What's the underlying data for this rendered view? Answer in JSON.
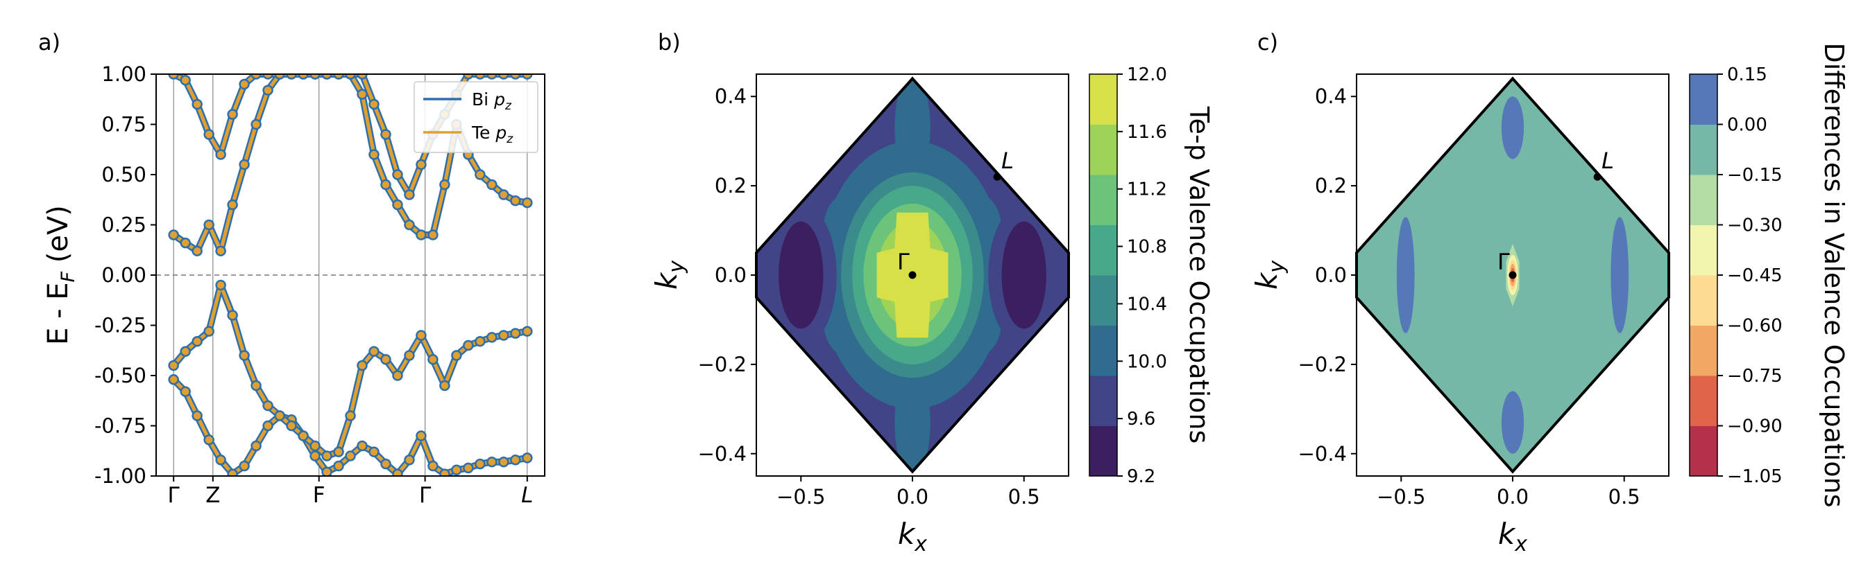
{
  "chart_data": [
    {
      "type": "line",
      "panel_label": "a)",
      "ylabel_main": "E - E",
      "ylabel_sub": "F",
      "ylabel_tail": " (eV)",
      "ylim": [
        -1.0,
        1.0
      ],
      "yticks": [
        "1.00",
        "0.75",
        "0.50",
        "0.25",
        "0.00",
        "-0.25",
        "-0.50",
        "-0.75",
        "-1.00"
      ],
      "ytick_values": [
        1.0,
        0.75,
        0.5,
        0.25,
        0.0,
        -0.25,
        -0.5,
        -0.75,
        -1.0
      ],
      "xticks": [
        "Γ",
        "Z",
        "F",
        "Γ",
        "L"
      ],
      "xtick_positions": [
        0,
        0.1,
        0.37,
        0.64,
        0.9
      ],
      "fermi_level": 0.0,
      "legend": {
        "placement": "top-right",
        "entries": [
          {
            "name": "Bi",
            "sub": "z",
            "color": "#2d6fae"
          },
          {
            "name": "Te",
            "sub": "z",
            "color": "#e0a030"
          }
        ]
      },
      "series": [
        {
          "x": [
            0,
            0.03,
            0.06,
            0.09,
            0.12,
            0.15,
            0.18,
            0.21,
            0.24,
            0.27,
            0.3,
            0.33,
            0.36,
            0.39,
            0.42,
            0.45,
            0.48,
            0.51,
            0.54,
            0.57,
            0.6,
            0.63,
            0.66,
            0.69,
            0.72,
            0.75,
            0.78,
            0.81,
            0.84,
            0.87,
            0.9
          ],
          "y": [
            -0.52,
            -0.58,
            -0.7,
            -0.82,
            -0.92,
            -0.99,
            -0.95,
            -0.85,
            -0.75,
            -0.7,
            -0.72,
            -0.8,
            -0.9,
            -0.98,
            -0.95,
            -0.9,
            -0.85,
            -0.88,
            -0.94,
            -0.99,
            -0.92,
            -0.8,
            -0.95,
            -0.99,
            -0.97,
            -0.96,
            -0.94,
            -0.93,
            -0.93,
            -0.92,
            -0.91
          ]
        },
        {
          "x": [
            0,
            0.03,
            0.06,
            0.09,
            0.12,
            0.15,
            0.18,
            0.21,
            0.24,
            0.27,
            0.3,
            0.33,
            0.36,
            0.39,
            0.42,
            0.45,
            0.48,
            0.51,
            0.54,
            0.57,
            0.6,
            0.63,
            0.66,
            0.69,
            0.72,
            0.75,
            0.78,
            0.81,
            0.84,
            0.87,
            0.9
          ],
          "y": [
            -0.45,
            -0.38,
            -0.33,
            -0.28,
            -0.05,
            -0.2,
            -0.4,
            -0.55,
            -0.65,
            -0.7,
            -0.75,
            -0.8,
            -0.85,
            -0.9,
            -0.88,
            -0.7,
            -0.45,
            -0.38,
            -0.42,
            -0.5,
            -0.4,
            -0.3,
            -0.42,
            -0.55,
            -0.4,
            -0.35,
            -0.33,
            -0.31,
            -0.3,
            -0.29,
            -0.28
          ]
        },
        {
          "x": [
            0,
            0.03,
            0.06,
            0.09,
            0.12,
            0.15,
            0.18,
            0.21,
            0.24,
            0.27,
            0.3,
            0.33,
            0.36,
            0.39,
            0.42,
            0.45,
            0.48,
            0.51,
            0.54,
            0.57,
            0.6,
            0.63,
            0.66,
            0.69,
            0.72,
            0.75,
            0.78,
            0.81,
            0.84,
            0.87,
            0.9
          ],
          "y": [
            0.2,
            0.16,
            0.12,
            0.25,
            0.12,
            0.35,
            0.55,
            0.75,
            0.92,
            1.0,
            1.0,
            1.0,
            1.0,
            1.0,
            1.0,
            1.0,
            0.9,
            0.6,
            0.45,
            0.35,
            0.25,
            0.2,
            0.2,
            0.45,
            0.75,
            0.6,
            0.5,
            0.45,
            0.4,
            0.37,
            0.36
          ]
        },
        {
          "x": [
            0,
            0.03,
            0.06,
            0.09,
            0.12,
            0.15,
            0.18,
            0.21,
            0.24,
            0.27,
            0.3,
            0.33,
            0.36,
            0.39,
            0.42,
            0.45,
            0.48,
            0.51,
            0.54,
            0.57,
            0.6,
            0.63,
            0.66,
            0.69,
            0.72,
            0.75,
            0.78,
            0.81,
            0.84,
            0.87,
            0.9
          ],
          "y": [
            1.0,
            0.97,
            0.85,
            0.7,
            0.6,
            0.8,
            0.95,
            1.0,
            1.0,
            1.0,
            1.0,
            1.0,
            1.0,
            1.0,
            1.0,
            1.0,
            1.0,
            0.85,
            0.7,
            0.5,
            0.4,
            0.55,
            0.7,
            0.8,
            0.9,
            1.0,
            1.0,
            1.0,
            1.0,
            1.0,
            1.0
          ]
        }
      ]
    },
    {
      "type": "heatmap",
      "panel_label": "b)",
      "xlabel": "k",
      "xlabel_sub": "x",
      "ylabel": "k",
      "ylabel_sub": "y",
      "xlim": [
        -0.7,
        0.7
      ],
      "ylim": [
        -0.45,
        0.45
      ],
      "xticks": [
        "−0.5",
        "0.0",
        "0.5"
      ],
      "xtick_values": [
        -0.5,
        0.0,
        0.5
      ],
      "yticks": [
        "0.4",
        "0.2",
        "0.0",
        "−0.2",
        "−0.4"
      ],
      "ytick_values": [
        0.4,
        0.2,
        0.0,
        -0.2,
        -0.4
      ],
      "points": [
        {
          "label": "Γ",
          "x": 0.0,
          "y": 0.0
        },
        {
          "label": "L",
          "x": 0.38,
          "y": 0.22
        }
      ],
      "colorbar": {
        "label": "Te-p Valence Occupations",
        "ticks": [
          "12.0",
          "11.6",
          "11.2",
          "10.8",
          "10.4",
          "10.0",
          "9.6",
          "9.2"
        ],
        "levels": [
          9.2,
          9.6,
          10.0,
          10.4,
          10.8,
          11.2,
          11.6,
          12.0
        ],
        "colors": [
          "#3c1f5e",
          "#414487",
          "#2f6c8e",
          "#3b8b8c",
          "#47a88a",
          "#6cc47a",
          "#9ed35a",
          "#d7e049"
        ]
      }
    },
    {
      "type": "heatmap",
      "panel_label": "c)",
      "xlabel": "k",
      "xlabel_sub": "x",
      "ylabel": "k",
      "ylabel_sub": "y",
      "xlim": [
        -0.7,
        0.7
      ],
      "ylim": [
        -0.45,
        0.45
      ],
      "xticks": [
        "−0.5",
        "0.0",
        "0.5"
      ],
      "xtick_values": [
        -0.5,
        0.0,
        0.5
      ],
      "yticks": [
        "0.4",
        "0.2",
        "0.0",
        "−0.2",
        "−0.4"
      ],
      "ytick_values": [
        0.4,
        0.2,
        0.0,
        -0.2,
        -0.4
      ],
      "points": [
        {
          "label": "Γ",
          "x": 0.0,
          "y": 0.0
        },
        {
          "label": "L",
          "x": 0.38,
          "y": 0.22
        }
      ],
      "colorbar": {
        "label": "Differences in Valence Occupations",
        "ticks": [
          "0.15",
          "0.00",
          "−0.15",
          "−0.30",
          "−0.45",
          "−0.60",
          "−0.75",
          "−0.90",
          "−1.05"
        ],
        "levels": [
          -1.05,
          -0.9,
          -0.75,
          -0.6,
          -0.45,
          -0.3,
          -0.15,
          0.0,
          0.15
        ],
        "colors": [
          "#b5304a",
          "#e0644a",
          "#f2a865",
          "#fbdc92",
          "#f2f5ae",
          "#b3dda4",
          "#76b8a8",
          "#5478b8"
        ]
      }
    }
  ]
}
